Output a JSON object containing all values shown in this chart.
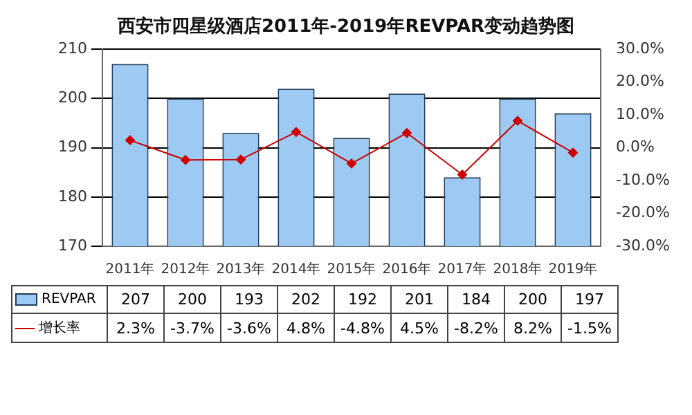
{
  "chart_data": {
    "type": "bar",
    "title": "西安市四星级酒店2011年-2019年REVPAR变动趋势图",
    "categories": [
      "2011年",
      "2012年",
      "2013年",
      "2014年",
      "2015年",
      "2016年",
      "2017年",
      "2018年",
      "2019年"
    ],
    "series": [
      {
        "name": "REVPAR",
        "color": "#9ccaf2",
        "values": [
          207,
          200,
          193,
          202,
          192,
          201,
          184,
          200,
          197
        ],
        "value_labels": [
          "207",
          "200",
          "193",
          "202",
          "192",
          "201",
          "184",
          "200",
          "197"
        ]
      },
      {
        "name": "增长率",
        "type": "line",
        "axis": "y2",
        "color": "#cc0000",
        "marker": "diamond",
        "values": [
          2.3,
          -3.7,
          -3.6,
          4.8,
          -4.8,
          4.5,
          -8.2,
          8.2,
          -1.5
        ],
        "value_labels": [
          "2.3%",
          "-3.7%",
          "-3.6%",
          "4.8%",
          "-4.8%",
          "4.5%",
          "-8.2%",
          "8.2%",
          "-1.5%"
        ]
      }
    ],
    "ylim": [
      170,
      210
    ],
    "yticks": [
      170,
      180,
      190,
      200,
      210
    ],
    "y2lim": [
      -30,
      30
    ],
    "y2ticks": [
      {
        "value": -30,
        "label": "-30.0%"
      },
      {
        "value": -20,
        "label": "-20.0%"
      },
      {
        "value": -10,
        "label": "-10.0%"
      },
      {
        "value": 0,
        "label": "0.0%"
      },
      {
        "value": 10,
        "label": "10.0%"
      },
      {
        "value": 20,
        "label": "20.0%"
      },
      {
        "value": 30,
        "label": "30.0%"
      }
    ],
    "grid": "y",
    "legend": "bottom"
  }
}
